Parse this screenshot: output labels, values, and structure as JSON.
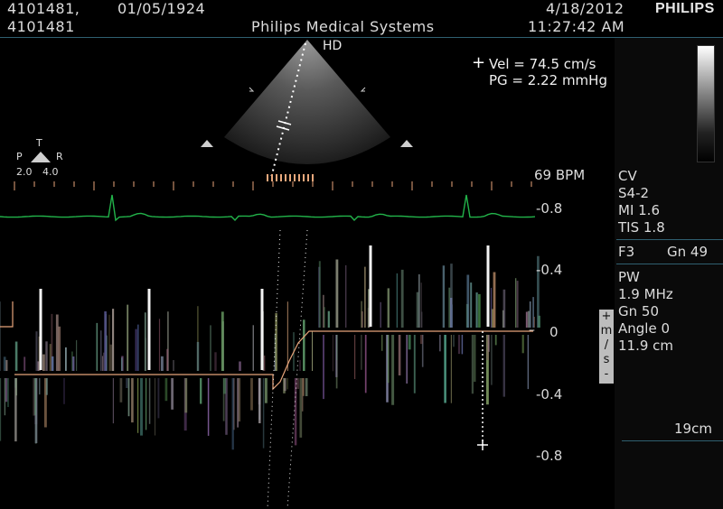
{
  "header": {
    "patient_id_1": "4101481,",
    "birth_date": "01/05/1924",
    "patient_id_2": "4101481",
    "study_date": "4/18/2012",
    "system_name": "Philips Medical Systems",
    "study_time": "11:27:42 AM",
    "brand": "PHILIPS"
  },
  "sector": {
    "label": "HD"
  },
  "measurement": {
    "velocity": "Vel = 74.5 cm/s",
    "pressure_gradient": "PG = 2.22 mmHg"
  },
  "orientation": {
    "top": "T",
    "left": "P",
    "right": "R",
    "left_value": "2.0",
    "right_value": "4.0"
  },
  "heart_rate": "69 BPM",
  "settings": {
    "preset": "CV",
    "transducer": "S4-2",
    "mi": "MI 1.6",
    "tis": "TIS 1.8",
    "freq_setting": "F3",
    "gain_2d": "Gn 49",
    "mode": "PW",
    "frequency": "1.9 MHz",
    "gain_pw": "Gn 50",
    "angle": "Angle 0",
    "depth_gate": "11.9 cm",
    "depth": "19cm"
  },
  "velocity_scale": {
    "unit_letters": [
      "+",
      "m",
      "/",
      "s",
      "-"
    ],
    "ticks": [
      "-0.8",
      "-0.4",
      "0",
      "-0.4",
      "-0.8"
    ]
  },
  "colors": {
    "ecg": "#22b34a",
    "baseline": "#e7a47a",
    "separator": "#2f5f70",
    "text": "#dcdcdc"
  }
}
